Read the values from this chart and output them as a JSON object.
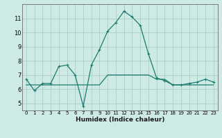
{
  "xlabel": "Humidex (Indice chaleur)",
  "ylabel": "",
  "bg_color": "#ceeae4",
  "grid_color": "#aacfc8",
  "line_color": "#1a7a6e",
  "x": [
    0,
    1,
    2,
    3,
    4,
    5,
    6,
    7,
    8,
    9,
    10,
    11,
    12,
    13,
    14,
    15,
    16,
    17,
    18,
    19,
    20,
    21,
    22,
    23
  ],
  "line1": [
    6.7,
    5.9,
    6.4,
    6.4,
    7.6,
    7.7,
    7.0,
    4.8,
    7.7,
    8.8,
    10.1,
    10.7,
    11.5,
    11.1,
    10.5,
    8.5,
    6.8,
    6.6,
    6.3,
    6.3,
    6.4,
    6.5,
    6.7,
    6.5
  ],
  "line2": [
    6.3,
    6.3,
    6.3,
    6.3,
    6.3,
    6.3,
    6.3,
    6.3,
    6.3,
    6.3,
    7.0,
    7.0,
    7.0,
    7.0,
    7.0,
    7.0,
    6.7,
    6.7,
    6.3,
    6.3,
    6.3,
    6.3,
    6.3,
    6.3
  ],
  "ylim": [
    4.5,
    12.0
  ],
  "yticks": [
    5,
    6,
    7,
    8,
    9,
    10,
    11
  ],
  "xticks": [
    0,
    1,
    2,
    3,
    4,
    5,
    6,
    7,
    8,
    9,
    10,
    11,
    12,
    13,
    14,
    15,
    16,
    17,
    18,
    19,
    20,
    21,
    22,
    23
  ]
}
